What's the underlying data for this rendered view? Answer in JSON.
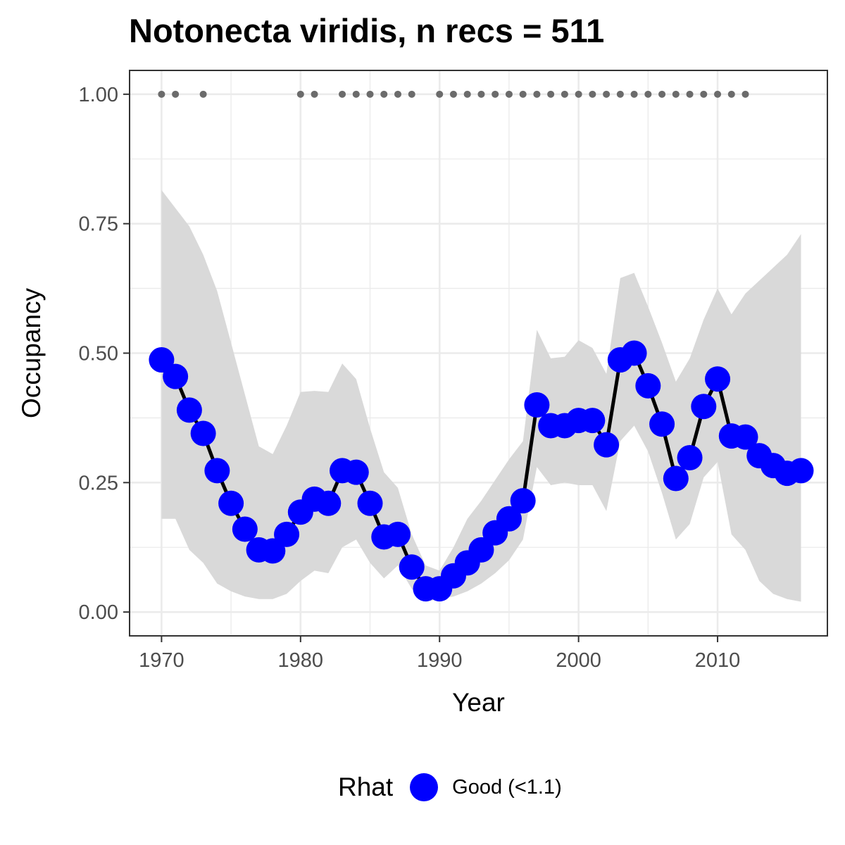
{
  "chart_data": {
    "type": "line",
    "title": "Notonecta viridis, n recs = 511",
    "xlabel": "Year",
    "ylabel": "Occupancy",
    "xlim": [
      1967.7,
      1917.9
    ],
    "ylim": [
      -0.046,
      1.046
    ],
    "x_ticks": [
      1970,
      1980,
      1990,
      2000,
      2010
    ],
    "x_tick_labels": [
      "1970",
      "1980",
      "1990",
      "2000",
      "2010"
    ],
    "y_ticks": [
      0,
      0.25,
      0.5,
      0.75,
      1.0
    ],
    "y_tick_labels": [
      "0.00",
      "0.25",
      "0.50",
      "0.75",
      "1.00"
    ],
    "grid": true,
    "series": [
      {
        "name": "Good (<1.1)",
        "color": "#0000ff",
        "x": [
          1970,
          1971,
          1972,
          1973,
          1974,
          1975,
          1976,
          1977,
          1978,
          1979,
          1980,
          1981,
          1982,
          1983,
          1984,
          1985,
          1986,
          1987,
          1988,
          1989,
          1990,
          1991,
          1992,
          1993,
          1994,
          1995,
          1996,
          1997,
          1998,
          1999,
          2000,
          2001,
          2002,
          2003,
          2004,
          2005,
          2006,
          2007,
          2008,
          2009,
          2010,
          2011,
          2012,
          2013,
          2014,
          2015,
          2016
        ],
        "y": [
          0.487,
          0.455,
          0.39,
          0.345,
          0.273,
          0.21,
          0.16,
          0.12,
          0.118,
          0.15,
          0.193,
          0.218,
          0.21,
          0.273,
          0.27,
          0.21,
          0.145,
          0.15,
          0.087,
          0.045,
          0.045,
          0.07,
          0.095,
          0.12,
          0.153,
          0.18,
          0.215,
          0.4,
          0.36,
          0.36,
          0.37,
          0.37,
          0.323,
          0.487,
          0.5,
          0.437,
          0.363,
          0.258,
          0.298,
          0.397,
          0.45,
          0.34,
          0.338,
          0.302,
          0.283,
          0.268,
          0.273
        ]
      }
    ],
    "ci_lower": [
      0.18,
      0.18,
      0.12,
      0.095,
      0.055,
      0.04,
      0.03,
      0.025,
      0.025,
      0.035,
      0.06,
      0.08,
      0.075,
      0.125,
      0.14,
      0.095,
      0.065,
      0.09,
      0.045,
      0.02,
      0.025,
      0.03,
      0.04,
      0.055,
      0.075,
      0.1,
      0.14,
      0.28,
      0.245,
      0.25,
      0.245,
      0.245,
      0.195,
      0.33,
      0.36,
      0.31,
      0.23,
      0.14,
      0.17,
      0.26,
      0.29,
      0.15,
      0.12,
      0.06,
      0.035,
      0.025,
      0.02
    ],
    "ci_upper": [
      0.815,
      0.78,
      0.745,
      0.69,
      0.62,
      0.52,
      0.42,
      0.32,
      0.305,
      0.36,
      0.425,
      0.427,
      0.425,
      0.48,
      0.45,
      0.355,
      0.27,
      0.24,
      0.15,
      0.09,
      0.08,
      0.125,
      0.18,
      0.215,
      0.255,
      0.295,
      0.33,
      0.545,
      0.49,
      0.493,
      0.525,
      0.51,
      0.46,
      0.645,
      0.655,
      0.59,
      0.52,
      0.445,
      0.49,
      0.565,
      0.625,
      0.575,
      0.615,
      0.64,
      0.665,
      0.69,
      0.73
    ],
    "ci_color": "#d9d9d9",
    "record_years": [
      1970,
      1971,
      1973,
      1980,
      1981,
      1983,
      1984,
      1985,
      1986,
      1987,
      1988,
      1990,
      1991,
      1992,
      1993,
      1994,
      1995,
      1996,
      1997,
      1998,
      1999,
      2000,
      2001,
      2002,
      2003,
      2004,
      2005,
      2006,
      2007,
      2008,
      2009,
      2010,
      2011,
      2012
    ],
    "record_value": 1.0,
    "record_color": "#6b6b6b",
    "legend": {
      "title": "Rhat",
      "position": "bottom",
      "label": "Good (<1.1)"
    }
  }
}
